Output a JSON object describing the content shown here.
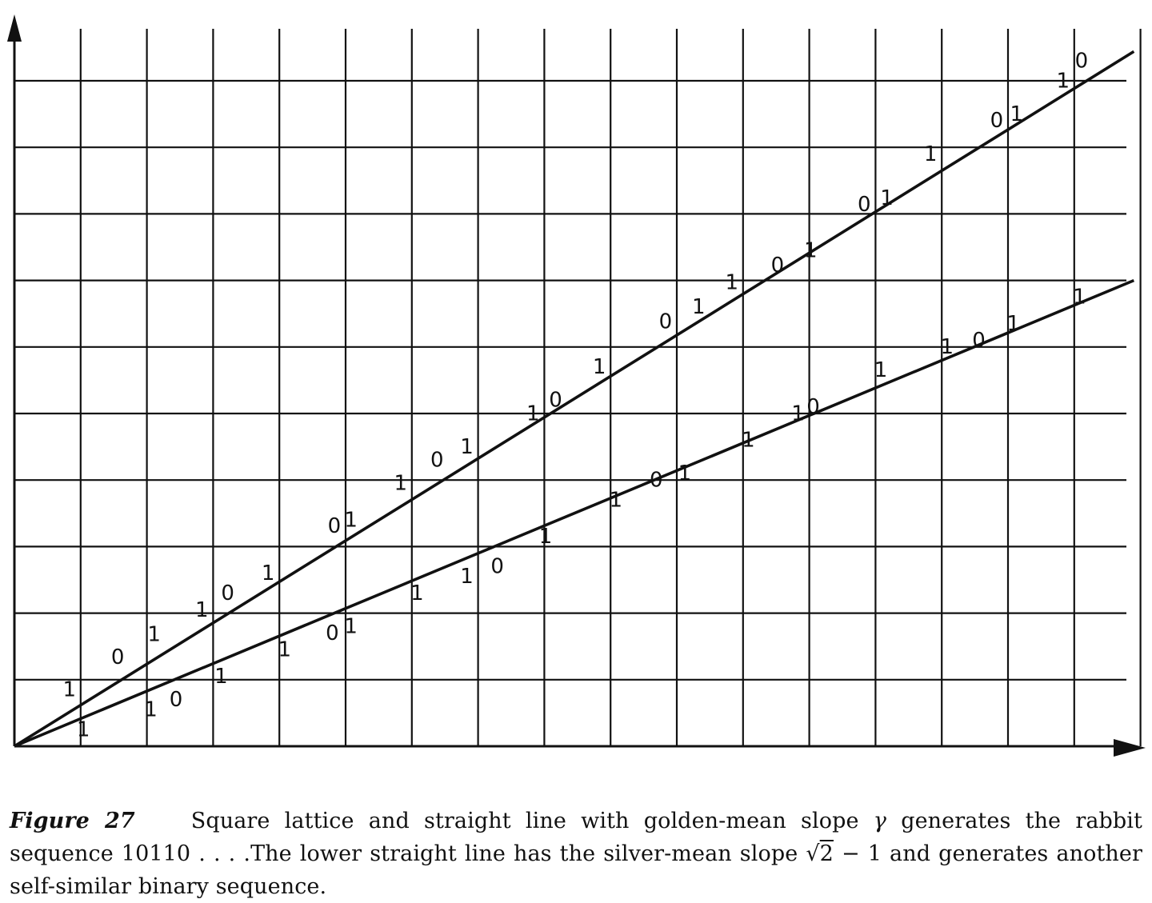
{
  "figure": {
    "label": "Figure 27",
    "caption_parts": {
      "p1": "Square lattice and straight line with golden-mean slope ",
      "gamma": "γ",
      "p2": " generates the rabbit sequence 10110 . . . .The lower straight line has the silver-mean slope ",
      "sqrt_sign": "√",
      "radicand": "2",
      "p3": " − 1 and generates another self-similar binary sequence."
    }
  },
  "chart_data": {
    "type": "line",
    "lattice": {
      "x_range": [
        0,
        17
      ],
      "y_range": [
        0,
        10.5
      ],
      "grid_step": 1
    },
    "series": [
      {
        "name": "golden-mean line",
        "slope": 0.618,
        "x": [
          0,
          16.9
        ],
        "y": [
          0,
          10.44
        ]
      },
      {
        "name": "silver-mean line",
        "slope": 0.4142,
        "x": [
          0,
          16.9
        ],
        "y": [
          0,
          7.0
        ]
      }
    ],
    "labels": [
      {
        "text": "1",
        "x": 0.83,
        "y": 0.75
      },
      {
        "text": "0",
        "x": 1.56,
        "y": 1.24
      },
      {
        "text": "1",
        "x": 2.11,
        "y": 1.58
      },
      {
        "text": "1",
        "x": 2.83,
        "y": 1.95
      },
      {
        "text": "0",
        "x": 3.22,
        "y": 2.2
      },
      {
        "text": "1",
        "x": 3.83,
        "y": 2.5
      },
      {
        "text": "0",
        "x": 4.83,
        "y": 3.21
      },
      {
        "text": "1",
        "x": 5.08,
        "y": 3.3
      },
      {
        "text": "1",
        "x": 5.83,
        "y": 3.85
      },
      {
        "text": "0",
        "x": 6.38,
        "y": 4.2
      },
      {
        "text": "1",
        "x": 6.83,
        "y": 4.4
      },
      {
        "text": "1",
        "x": 7.83,
        "y": 4.9
      },
      {
        "text": "0",
        "x": 8.17,
        "y": 5.1
      },
      {
        "text": "1",
        "x": 8.83,
        "y": 5.6
      },
      {
        "text": "0",
        "x": 9.83,
        "y": 6.28
      },
      {
        "text": "1",
        "x": 10.33,
        "y": 6.5
      },
      {
        "text": "1",
        "x": 10.83,
        "y": 6.87
      },
      {
        "text": "0",
        "x": 11.52,
        "y": 7.13
      },
      {
        "text": "1",
        "x": 12.02,
        "y": 7.35
      },
      {
        "text": "0",
        "x": 12.83,
        "y": 8.04
      },
      {
        "text": "1",
        "x": 13.17,
        "y": 8.14
      },
      {
        "text": "1",
        "x": 13.83,
        "y": 8.8
      },
      {
        "text": "0",
        "x": 14.83,
        "y": 9.3
      },
      {
        "text": "1",
        "x": 15.13,
        "y": 9.4
      },
      {
        "text": "1",
        "x": 15.83,
        "y": 9.9
      },
      {
        "text": "0",
        "x": 16.11,
        "y": 10.2
      },
      {
        "text": "1",
        "x": 1.04,
        "y": 0.15
      },
      {
        "text": "1",
        "x": 2.06,
        "y": 0.45
      },
      {
        "text": "0",
        "x": 2.44,
        "y": 0.6
      },
      {
        "text": "1",
        "x": 3.12,
        "y": 0.95
      },
      {
        "text": "1",
        "x": 4.08,
        "y": 1.35
      },
      {
        "text": "0",
        "x": 4.8,
        "y": 1.6
      },
      {
        "text": "1",
        "x": 5.08,
        "y": 1.7
      },
      {
        "text": "1",
        "x": 6.08,
        "y": 2.2
      },
      {
        "text": "1",
        "x": 6.83,
        "y": 2.45
      },
      {
        "text": "0",
        "x": 7.29,
        "y": 2.6
      },
      {
        "text": "1",
        "x": 8.02,
        "y": 3.05
      },
      {
        "text": "1",
        "x": 9.08,
        "y": 3.6
      },
      {
        "text": "0",
        "x": 9.69,
        "y": 3.9
      },
      {
        "text": "1",
        "x": 10.12,
        "y": 4.0
      },
      {
        "text": "1",
        "x": 11.08,
        "y": 4.5
      },
      {
        "text": "1",
        "x": 11.83,
        "y": 4.9
      },
      {
        "text": "0",
        "x": 12.06,
        "y": 5.0
      },
      {
        "text": "1",
        "x": 13.08,
        "y": 5.55
      },
      {
        "text": "1",
        "x": 14.08,
        "y": 5.9
      },
      {
        "text": "0",
        "x": 14.56,
        "y": 6.0
      },
      {
        "text": "1",
        "x": 15.08,
        "y": 6.25
      },
      {
        "text": "1",
        "x": 16.08,
        "y": 6.65
      }
    ]
  }
}
